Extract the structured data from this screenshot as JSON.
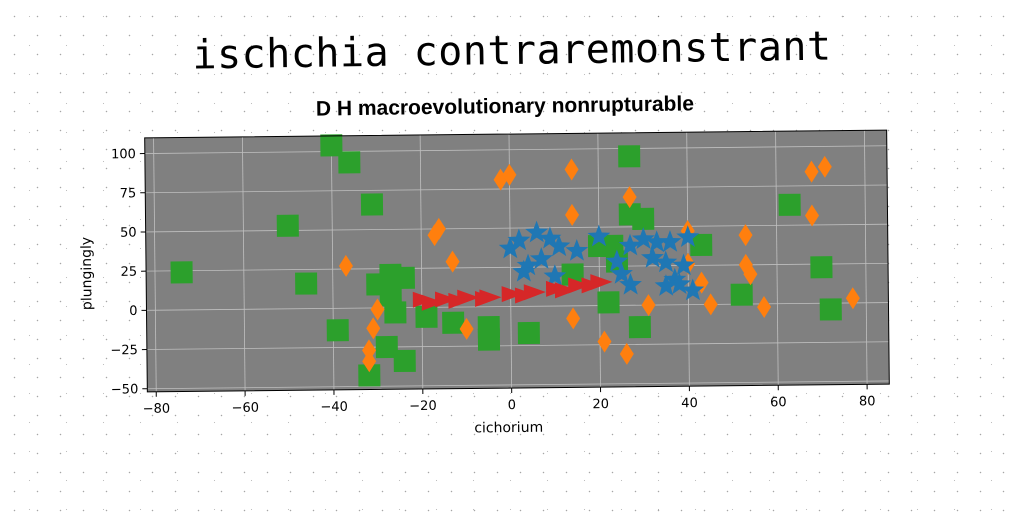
{
  "page": {
    "title": "ischchia contraremonstrant"
  },
  "chart_data": {
    "type": "scatter",
    "title": "D H macroevolutionary nonrupturable",
    "xlabel": "cichorium",
    "ylabel": "plungingly",
    "xlim": [
      -82,
      85
    ],
    "ylim": [
      -52,
      110
    ],
    "xticks": [
      -80,
      -60,
      -40,
      -20,
      0,
      20,
      40,
      60,
      80
    ],
    "yticks": [
      -50,
      -25,
      0,
      25,
      50,
      75,
      100
    ],
    "grid": true,
    "colors": {
      "background": "#808080",
      "grid": "#bfbfbf",
      "blue": "#1f77b4",
      "orange": "#ff7f0e",
      "green": "#2ca02c",
      "red": "#d62728"
    },
    "series": [
      {
        "marker": "square",
        "color": "#2ca02c",
        "points": [
          [
            -40,
            104
          ],
          [
            -36,
            93
          ],
          [
            -31,
            66
          ],
          [
            -50,
            53
          ],
          [
            -74,
            24
          ],
          [
            -46,
            16
          ],
          [
            -27,
            21
          ],
          [
            -30,
            15
          ],
          [
            -24,
            19
          ],
          [
            -27,
            8
          ],
          [
            -26,
            -3
          ],
          [
            -19,
            -6
          ],
          [
            -13,
            -10
          ],
          [
            -39,
            -14
          ],
          [
            -28,
            -25
          ],
          [
            -24,
            -34
          ],
          [
            -32,
            -43
          ],
          [
            -5,
            -13
          ],
          [
            -5,
            -21
          ],
          [
            4,
            -17
          ],
          [
            14,
            20
          ],
          [
            20,
            38
          ],
          [
            24,
            28
          ],
          [
            22,
            2
          ],
          [
            29,
            -14
          ],
          [
            23,
            38
          ],
          [
            27,
            58
          ],
          [
            30,
            55
          ],
          [
            43,
            38
          ],
          [
            52,
            6
          ],
          [
            63,
            63
          ],
          [
            70,
            23
          ],
          [
            72,
            -4
          ],
          [
            27,
            95
          ]
        ]
      },
      {
        "marker": "diamond",
        "color": "#ff7f0e",
        "points": [
          [
            -2,
            81
          ],
          [
            0,
            84
          ],
          [
            14,
            87
          ],
          [
            27,
            69
          ],
          [
            14,
            58
          ],
          [
            -16,
            50
          ],
          [
            -17,
            46
          ],
          [
            -13,
            29
          ],
          [
            -37,
            27
          ],
          [
            -30,
            -1
          ],
          [
            -31,
            -13
          ],
          [
            -32,
            -27
          ],
          [
            -32,
            -34
          ],
          [
            -10,
            -14
          ],
          [
            14,
            -8
          ],
          [
            21,
            -23
          ],
          [
            26,
            -31
          ],
          [
            31,
            0
          ],
          [
            40,
            26
          ],
          [
            40,
            47
          ],
          [
            43,
            14
          ],
          [
            45,
            0
          ],
          [
            53,
            44
          ],
          [
            53,
            25
          ],
          [
            54,
            19
          ],
          [
            57,
            -2
          ],
          [
            68,
            56
          ],
          [
            68,
            84
          ],
          [
            71,
            87
          ],
          [
            77,
            3
          ]
        ]
      },
      {
        "marker": "star",
        "color": "#1f77b4",
        "points": [
          [
            0,
            37
          ],
          [
            2,
            42
          ],
          [
            6,
            47
          ],
          [
            9,
            43
          ],
          [
            11,
            38
          ],
          [
            7,
            30
          ],
          [
            4,
            26
          ],
          [
            3,
            22
          ],
          [
            10,
            19
          ],
          [
            15,
            35
          ],
          [
            20,
            44
          ],
          [
            24,
            28
          ],
          [
            25,
            20
          ],
          [
            27,
            13
          ],
          [
            27,
            38
          ],
          [
            30,
            42
          ],
          [
            32,
            30
          ],
          [
            33,
            40
          ],
          [
            35,
            27
          ],
          [
            36,
            40
          ],
          [
            37,
            16
          ],
          [
            39,
            25
          ],
          [
            40,
            43
          ],
          [
            38,
            13
          ],
          [
            41,
            9
          ],
          [
            35,
            12
          ]
        ]
      },
      {
        "marker": "triangle",
        "color": "#d62728",
        "points": [
          [
            -20,
            5
          ],
          [
            -15,
            5
          ],
          [
            -10,
            6
          ],
          [
            -5,
            6
          ],
          [
            0,
            8
          ],
          [
            5,
            9
          ],
          [
            10,
            11
          ],
          [
            15,
            13
          ],
          [
            20,
            15
          ],
          [
            -18,
            3
          ],
          [
            -12,
            4
          ],
          [
            -6,
            5
          ],
          [
            3,
            7
          ],
          [
            12,
            10
          ],
          [
            18,
            13
          ]
        ]
      }
    ]
  }
}
